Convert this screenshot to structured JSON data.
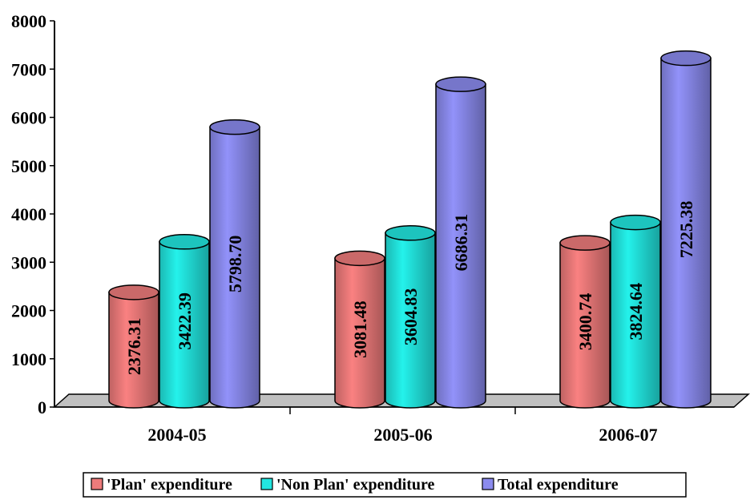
{
  "chart_data": {
    "type": "bar",
    "categories": [
      "2004-05",
      "2005-06",
      "2006-07"
    ],
    "series": [
      {
        "name": "'Plan' expenditure",
        "values": [
          2376.31,
          3081.48,
          3400.74
        ],
        "color": "#ee7b7b",
        "value_labels": [
          "2376.31",
          "3081.48",
          "3400.74"
        ]
      },
      {
        "name": "'Non Plan' expenditure",
        "values": [
          3422.39,
          3604.83,
          3824.64
        ],
        "color": "#22e6e0",
        "value_labels": [
          "3422.39",
          "3604.83",
          "3824.64"
        ]
      },
      {
        "name": "Total expenditure",
        "values": [
          5798.7,
          6686.31,
          7225.38
        ],
        "color": "#8b8bee",
        "value_labels": [
          "5798.70",
          "6686.31",
          "7225.38"
        ]
      }
    ],
    "y_ticks": [
      "0",
      "1000",
      "2000",
      "3000",
      "4000",
      "5000",
      "6000",
      "7000",
      "8000"
    ],
    "ylim": [
      0,
      8000
    ],
    "grid": false,
    "legend_position": "bottom",
    "title": "",
    "xlabel": "",
    "ylabel": ""
  }
}
